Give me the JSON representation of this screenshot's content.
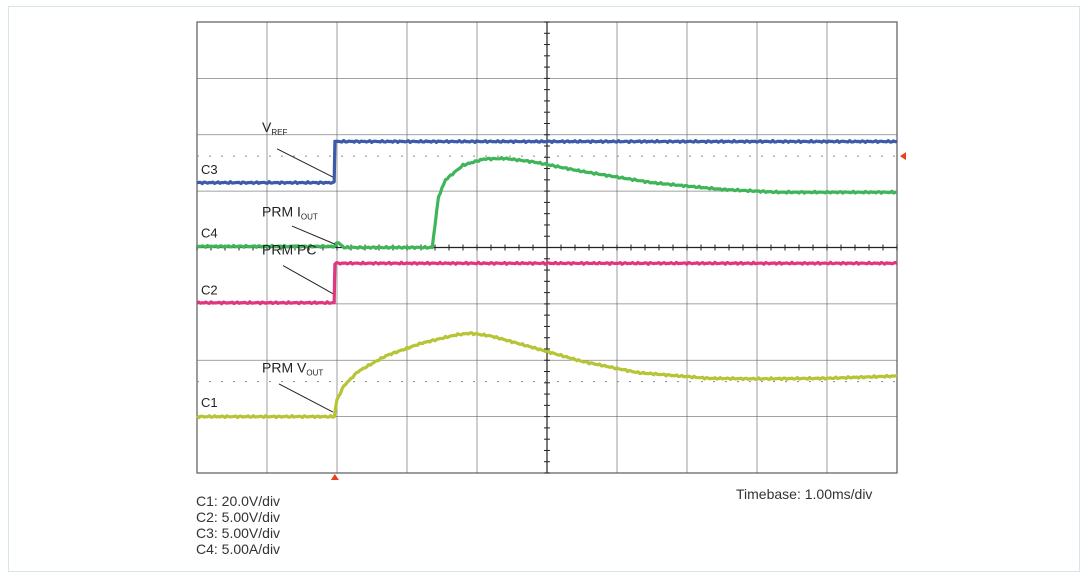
{
  "chart_data": {
    "type": "line",
    "title": "",
    "x_divisions": 10,
    "y_divisions": 8,
    "x_unit": "ms",
    "time_per_div_ms": 1.0,
    "channels": [
      {
        "id": "C3",
        "name": "V",
        "name_sub": "REF",
        "color": "#3c5aa8",
        "marker_label": "C3",
        "points": [
          [
            0,
            5.15
          ],
          [
            1.96,
            5.15
          ],
          [
            1.97,
            5.88
          ],
          [
            10,
            5.88
          ]
        ]
      },
      {
        "id": "C4",
        "name": "PRM I",
        "name_sub": "OUT",
        "color": "#3fb55a",
        "marker_label": "C4",
        "points": [
          [
            0,
            4.02
          ],
          [
            1.97,
            4.02
          ],
          [
            2.0,
            4.1
          ],
          [
            2.1,
            4.0
          ],
          [
            3.36,
            4.0
          ],
          [
            3.4,
            4.4
          ],
          [
            3.45,
            4.9
          ],
          [
            3.55,
            5.2
          ],
          [
            3.8,
            5.46
          ],
          [
            4.1,
            5.57
          ],
          [
            4.4,
            5.58
          ],
          [
            4.8,
            5.52
          ],
          [
            5.5,
            5.35
          ],
          [
            6.5,
            5.15
          ],
          [
            7.5,
            5.03
          ],
          [
            8.3,
            4.98
          ],
          [
            10,
            4.98
          ]
        ]
      },
      {
        "id": "C2",
        "name": "PRM PC",
        "name_sub": "",
        "color": "#e0367e",
        "marker_label": "C2",
        "points": [
          [
            0,
            3.02
          ],
          [
            1.96,
            3.02
          ],
          [
            1.97,
            3.72
          ],
          [
            10,
            3.72
          ]
        ]
      },
      {
        "id": "C1",
        "name": "PRM V",
        "name_sub": "OUT",
        "color": "#b6c436",
        "marker_label": "C1",
        "points": [
          [
            0,
            1.0
          ],
          [
            1.96,
            1.0
          ],
          [
            2.0,
            1.3
          ],
          [
            2.1,
            1.55
          ],
          [
            2.3,
            1.8
          ],
          [
            2.7,
            2.08
          ],
          [
            3.2,
            2.3
          ],
          [
            3.7,
            2.45
          ],
          [
            3.9,
            2.48
          ],
          [
            4.2,
            2.43
          ],
          [
            4.7,
            2.26
          ],
          [
            5.5,
            1.98
          ],
          [
            6.3,
            1.78
          ],
          [
            7.3,
            1.68
          ],
          [
            8.0,
            1.67
          ],
          [
            9.0,
            1.68
          ],
          [
            10,
            1.72
          ]
        ]
      }
    ],
    "scale_labels": [
      "C1: 20.0V/div",
      "C2: 5.00V/div",
      "C3: 5.00V/div",
      "C4: 5.00A/div"
    ],
    "timebase_label": "Timebase: 1.00ms/div",
    "trigger_x_div": 1.97,
    "trigger_level_y_div": 5.62
  },
  "colors": {
    "grid": "#5a5a5a",
    "frame_border": "#d6e4ee",
    "trigger_marker": "#e8401c"
  }
}
